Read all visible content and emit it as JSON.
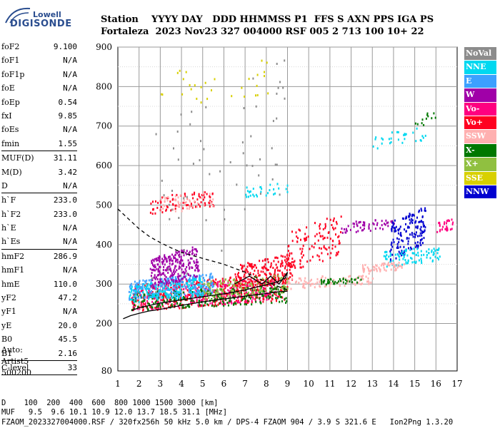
{
  "logo": {
    "brand": "Lowell",
    "word": "DIGISONDE"
  },
  "header": {
    "line1": "Station    YYYY DAY   DDD HHMMSS P1  FFS S AXN PPS IGA PS",
    "line2": "Fortaleza  2023 Nov23 327 004000 RSF 005 2 713 100 10+ 22"
  },
  "params": [
    {
      "name": "foF2",
      "value": "9.100"
    },
    {
      "name": "foF1",
      "value": "N/A"
    },
    {
      "name": "foF1p",
      "value": "N/A"
    },
    {
      "name": "foE",
      "value": "N/A"
    },
    {
      "name": "foEp",
      "value": "0.54"
    },
    {
      "name": "fxI",
      "value": "9.85"
    },
    {
      "name": "foEs",
      "value": "N/A"
    },
    {
      "name": "fmin",
      "value": "1.55"
    },
    {
      "sep": true
    },
    {
      "name": "MUF(D)",
      "value": "31.11"
    },
    {
      "name": "M(D)",
      "value": "3.42"
    },
    {
      "name": "D",
      "value": "N/A"
    },
    {
      "sep": true
    },
    {
      "name": "h`F",
      "value": "233.0"
    },
    {
      "name": "h`F2",
      "value": "233.0"
    },
    {
      "name": "h`E",
      "value": "N/A"
    },
    {
      "name": "h`Es",
      "value": "N/A"
    },
    {
      "sep": true
    },
    {
      "name": "hmF2",
      "value": "286.9"
    },
    {
      "name": "hmF1",
      "value": "N/A"
    },
    {
      "name": "hmE",
      "value": "110.0"
    },
    {
      "name": "yF2",
      "value": "47.2"
    },
    {
      "name": "yF1",
      "value": "N/A"
    },
    {
      "name": "yE",
      "value": "20.0"
    },
    {
      "name": "B0",
      "value": "45.5"
    },
    {
      "name": "B1",
      "value": "2.16"
    },
    {
      "sep": true
    },
    {
      "name": "C-level",
      "value": "33"
    },
    {
      "sep": true
    }
  ],
  "auto": {
    "line1": "Auto:",
    "line2": "Artist5",
    "line3": "500200"
  },
  "legend": [
    {
      "label": "NoVal",
      "color": "#8c8c8c"
    },
    {
      "label": "NNE",
      "color": "#00d8f0"
    },
    {
      "label": "E",
      "color": "#3ca0ff"
    },
    {
      "label": "W",
      "color": "#a000a8"
    },
    {
      "label": "Vo-",
      "color": "#ff0080"
    },
    {
      "label": "Vo+",
      "color": "#ff0020"
    },
    {
      "label": "SSW",
      "color": "#ffb0b0"
    },
    {
      "label": "X-",
      "color": "#007800"
    },
    {
      "label": "X+",
      "color": "#90c040"
    },
    {
      "label": "SSE",
      "color": "#d8d000"
    },
    {
      "label": "NNW",
      "color": "#0000d0"
    }
  ],
  "chart_data": {
    "type": "scatter",
    "x_ticks": [
      "1",
      "2",
      "3",
      "4",
      "5",
      "6",
      "7",
      "8",
      "9",
      "10",
      "11",
      "12",
      "13",
      "14",
      "15",
      "16",
      "17"
    ],
    "y_ticks": [
      "80",
      "200",
      "300",
      "400",
      "500",
      "600",
      "700",
      "800",
      "900"
    ],
    "xlim": [
      1,
      17
    ],
    "ylim": [
      80,
      900
    ],
    "grid": true,
    "clusters": [
      {
        "sense": "Vo+",
        "x": [
          1.6,
          9.0
        ],
        "y": [
          232,
          330
        ],
        "n": 420
      },
      {
        "sense": "Vo-",
        "x": [
          1.6,
          8.5
        ],
        "y": [
          235,
          320
        ],
        "n": 300
      },
      {
        "sense": "X-",
        "x": [
          1.6,
          9.0
        ],
        "y": [
          236,
          300
        ],
        "n": 260
      },
      {
        "sense": "E",
        "x": [
          1.5,
          5.5
        ],
        "y": [
          260,
          330
        ],
        "n": 260
      },
      {
        "sense": "NNE",
        "x": [
          1.5,
          5.0
        ],
        "y": [
          250,
          320
        ],
        "n": 150
      },
      {
        "sense": "W",
        "x": [
          2.5,
          4.8
        ],
        "y": [
          290,
          400
        ],
        "n": 260
      },
      {
        "sense": "Vo+",
        "x": [
          6.5,
          9.2
        ],
        "y": [
          280,
          380
        ],
        "n": 200
      },
      {
        "sense": "X+",
        "x": [
          5.0,
          9.0
        ],
        "y": [
          260,
          330
        ],
        "n": 120
      },
      {
        "sense": "Vo+",
        "x": [
          9.0,
          11.5
        ],
        "y": [
          330,
          480
        ],
        "n": 120
      },
      {
        "sense": "SSW",
        "x": [
          9.0,
          13.0
        ],
        "y": [
          290,
          330
        ],
        "n": 90
      },
      {
        "sense": "X-",
        "x": [
          10.5,
          12.5
        ],
        "y": [
          300,
          320
        ],
        "n": 40
      },
      {
        "sense": "W",
        "x": [
          11.5,
          14.0
        ],
        "y": [
          430,
          470
        ],
        "n": 60
      },
      {
        "sense": "NNW",
        "x": [
          13.8,
          15.5
        ],
        "y": [
          360,
          500
        ],
        "n": 160
      },
      {
        "sense": "NNE",
        "x": [
          13.5,
          16.2
        ],
        "y": [
          345,
          400
        ],
        "n": 90
      },
      {
        "sense": "SSW",
        "x": [
          12.5,
          14.5
        ],
        "y": [
          330,
          360
        ],
        "n": 60
      },
      {
        "sense": "Vo-",
        "x": [
          16.0,
          16.8
        ],
        "y": [
          430,
          470
        ],
        "n": 30
      },
      {
        "sense": "Vo+",
        "x": [
          2.5,
          5.5
        ],
        "y": [
          480,
          540
        ],
        "n": 90
      },
      {
        "sense": "SSW",
        "x": [
          3.0,
          5.5
        ],
        "y": [
          480,
          540
        ],
        "n": 50
      },
      {
        "sense": "NNE",
        "x": [
          7.0,
          9.0
        ],
        "y": [
          520,
          560
        ],
        "n": 30
      },
      {
        "sense": "NNE",
        "x": [
          13.0,
          15.5
        ],
        "y": [
          640,
          700
        ],
        "n": 30
      },
      {
        "sense": "X-",
        "x": [
          15.0,
          16.0
        ],
        "y": [
          700,
          740
        ],
        "n": 12
      },
      {
        "sense": "SSE",
        "x": [
          3.0,
          8.5
        ],
        "y": [
          740,
          880
        ],
        "n": 30
      },
      {
        "sense": "NoVal",
        "x": [
          2.0,
          9.0
        ],
        "y": [
          260,
          880
        ],
        "n": 60
      }
    ],
    "profile": {
      "x": [
        1.25,
        1.6,
        2.0,
        2.5,
        3.0,
        4.0,
        5.0,
        6.0,
        6.8,
        7.4,
        8.0,
        8.5,
        9.0
      ],
      "y": [
        212,
        220,
        226,
        232,
        236,
        246,
        255,
        262,
        268,
        272,
        276,
        280,
        282
      ]
    },
    "trace": {
      "x": [
        1.65,
        2.0,
        2.5,
        3.0,
        4.0,
        5.0,
        6.0,
        7.0,
        7.5,
        8.0,
        8.5,
        8.9,
        9.0
      ],
      "y": [
        233,
        240,
        246,
        252,
        260,
        268,
        275,
        285,
        292,
        298,
        305,
        315,
        330
      ]
    },
    "trace_fold": {
      "x": [
        6.5,
        7.2,
        7.8,
        8.2,
        8.6,
        9.0
      ],
      "y": [
        300,
        320,
        300,
        320,
        300,
        330
      ]
    },
    "dashed": {
      "x": [
        1.0,
        1.5,
        2.0,
        2.5,
        3.0,
        3.5,
        4.0,
        5.0,
        6.0,
        7.0,
        7.8,
        8.5,
        9.0
      ],
      "y": [
        490,
        465,
        440,
        420,
        405,
        392,
        380,
        365,
        350,
        330,
        310,
        295,
        285
      ]
    }
  },
  "footer": {
    "line1": "D    100  200  400  600  800 1000 1500 3000 [km]",
    "line2": "MUF   9.5  9.6 10.1 10.9 12.0 13.7 18.5 31.1 [MHz]",
    "line3": "FZAOM_2023327004000.RSF / 320fx256h 50 kHz 5.0 km / DPS-4 FZAOM 904 / 3.9 S 321.6 E   Ion2Png 1.3.20"
  }
}
